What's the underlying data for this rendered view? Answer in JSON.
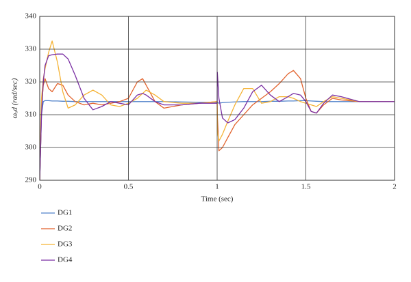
{
  "chart_data": {
    "type": "line",
    "x_label": "Time (sec)",
    "y_label": "ωₒd (rad/sec)",
    "x": [
      0,
      0.005,
      0.01,
      0.02,
      0.03,
      0.05,
      0.07,
      0.1,
      0.13,
      0.16,
      0.2,
      0.25,
      0.3,
      0.35,
      0.4,
      0.45,
      0.5,
      0.55,
      0.58,
      0.6,
      0.65,
      0.7,
      0.8,
      0.9,
      1.0,
      1.001,
      1.01,
      1.03,
      1.06,
      1.1,
      1.15,
      1.2,
      1.25,
      1.3,
      1.35,
      1.4,
      1.43,
      1.47,
      1.5,
      1.53,
      1.56,
      1.6,
      1.65,
      1.7,
      1.8,
      1.9,
      2.0
    ],
    "series": [
      {
        "name": "DG1",
        "color": "#4f81c9",
        "values": [
          290,
          300,
          310,
          314,
          314.3,
          314.3,
          314.2,
          314.2,
          314.1,
          314.1,
          314,
          314,
          314,
          314,
          314,
          314,
          314,
          314,
          314,
          314,
          314,
          314,
          313.9,
          313.8,
          313.8,
          313.8,
          313.5,
          313.7,
          313.8,
          313.9,
          314,
          314,
          314,
          314.1,
          314.1,
          314.2,
          314.2,
          314.3,
          314.3,
          314.2,
          314.1,
          314,
          314,
          314,
          314,
          314,
          314
        ]
      },
      {
        "name": "DG2",
        "color": "#e2622c",
        "values": [
          290,
          300,
          312,
          319,
          321,
          318,
          317,
          319.5,
          319,
          316,
          314,
          313,
          313.5,
          313,
          313.5,
          314,
          315,
          320,
          321,
          319,
          314,
          312,
          313,
          313.5,
          314,
          310,
          299,
          300,
          303,
          307,
          310,
          313,
          315,
          317,
          319.5,
          322.5,
          323.5,
          321,
          315,
          311,
          310.5,
          313,
          315,
          314.5,
          314,
          314,
          314
        ]
      },
      {
        "name": "DG3",
        "color": "#f5b335",
        "values": [
          290,
          305,
          315,
          321,
          324,
          329,
          332.5,
          326,
          317,
          312,
          313,
          316,
          317.5,
          316,
          313,
          312.5,
          313.5,
          315,
          316.5,
          317.5,
          316,
          314,
          313.5,
          313.5,
          314,
          305,
          302,
          304,
          308,
          313,
          318,
          318,
          313.5,
          314,
          315.5,
          315.5,
          315,
          314,
          313.5,
          313,
          312.5,
          314,
          315.5,
          315,
          314,
          314,
          314
        ]
      },
      {
        "name": "DG4",
        "color": "#7a2fa3",
        "values": [
          290,
          300,
          310,
          320,
          325,
          328,
          328.3,
          328.5,
          328.5,
          327,
          322,
          315,
          311.5,
          312.5,
          314,
          313.5,
          313,
          316,
          316.5,
          316,
          314,
          313,
          313,
          313.5,
          313.5,
          323,
          315,
          309,
          307.5,
          308.5,
          312,
          317,
          319,
          316,
          314,
          315.5,
          316.5,
          316,
          314,
          311,
          310.5,
          313.5,
          316,
          315.5,
          314,
          314,
          314
        ]
      }
    ],
    "xlim": [
      0,
      2
    ],
    "xticks": [
      0,
      0.5,
      1,
      1.5,
      2
    ],
    "ylim": [
      290,
      340
    ],
    "yticks": [
      290,
      300,
      310,
      320,
      330,
      340
    ],
    "grid": true,
    "legend": "bottom-left"
  }
}
